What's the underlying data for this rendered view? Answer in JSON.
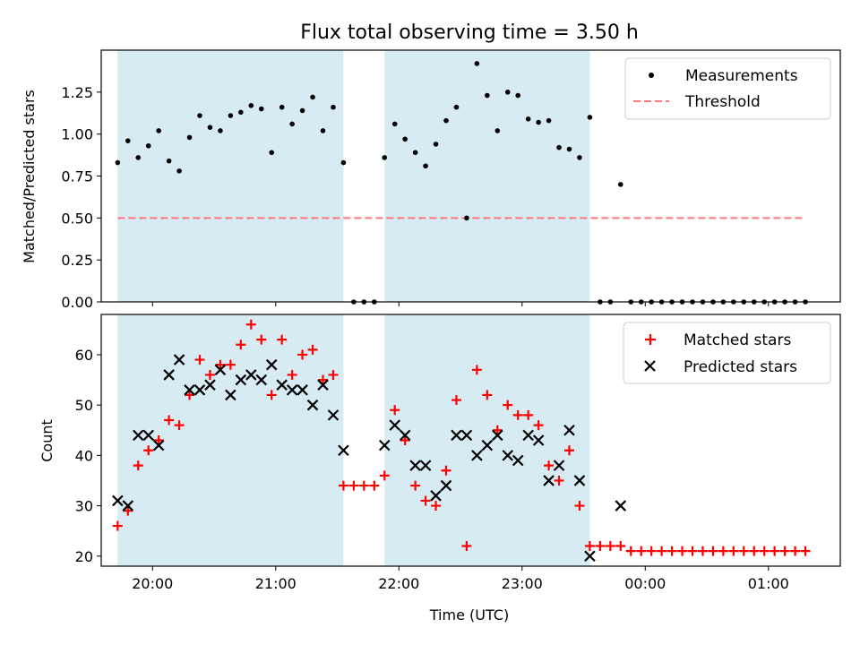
{
  "chart_data": [
    {
      "type": "scatter",
      "title": "Flux total observing time = 3.50 h",
      "xlabel": "",
      "ylabel": "Matched/Predicted stars",
      "xlim": [
        "19:35",
        "01:35"
      ],
      "ylim": [
        0,
        1.5
      ],
      "x_ticks": [
        "20:00",
        "21:00",
        "22:00",
        "23:00",
        "00:00",
        "01:00"
      ],
      "y_ticks": [
        "0.00",
        "0.25",
        "0.50",
        "0.75",
        "1.00",
        "1.25"
      ],
      "shaded_intervals": [
        [
          "19:43",
          "21:33"
        ],
        [
          "21:53",
          "23:33"
        ]
      ],
      "legend": {
        "placement": "upper right",
        "entries": [
          "Measurements",
          "Threshold"
        ]
      },
      "series": [
        {
          "name": "Measurements",
          "marker": "dot",
          "color": "#000000",
          "x": [
            "19:43",
            "19:48",
            "19:53",
            "19:58",
            "20:03",
            "20:08",
            "20:13",
            "20:18",
            "20:23",
            "20:28",
            "20:33",
            "20:38",
            "20:43",
            "20:48",
            "20:53",
            "20:58",
            "21:03",
            "21:08",
            "21:13",
            "21:18",
            "21:23",
            "21:28",
            "21:33",
            "21:38",
            "21:43",
            "21:48",
            "21:53",
            "21:58",
            "22:03",
            "22:08",
            "22:13",
            "22:18",
            "22:23",
            "22:28",
            "22:33",
            "22:38",
            "22:43",
            "22:48",
            "22:53",
            "22:58",
            "23:03",
            "23:08",
            "23:13",
            "23:18",
            "23:23",
            "23:28",
            "23:33",
            "23:38",
            "23:43",
            "23:48",
            "23:53",
            "23:58",
            "00:03",
            "00:08",
            "00:13",
            "00:18",
            "00:23",
            "00:28",
            "00:33",
            "00:38",
            "00:43",
            "00:48",
            "00:53",
            "00:58",
            "01:03",
            "01:08",
            "01:13",
            "01:18"
          ],
          "y": [
            0.83,
            0.96,
            0.86,
            0.93,
            1.02,
            0.84,
            0.78,
            0.98,
            1.11,
            1.04,
            1.02,
            1.11,
            1.13,
            1.17,
            1.15,
            0.89,
            1.16,
            1.06,
            1.14,
            1.22,
            1.02,
            1.16,
            0.83,
            0.0,
            0.0,
            0.0,
            0.86,
            1.06,
            0.97,
            0.89,
            0.81,
            0.94,
            1.08,
            1.16,
            0.5,
            1.42,
            1.23,
            1.02,
            1.25,
            1.23,
            1.09,
            1.07,
            1.08,
            0.92,
            0.91,
            0.86,
            1.1,
            0.0,
            0.0,
            0.7,
            0.0,
            0.0,
            0.0,
            0.0,
            0.0,
            0.0,
            0.0,
            0.0,
            0.0,
            0.0,
            0.0,
            0.0,
            0.0,
            0.0,
            0.0,
            0.0,
            0.0,
            0.0
          ]
        },
        {
          "name": "Threshold",
          "style": "dashed",
          "color": "#ff7777",
          "x": [
            "19:43",
            "01:18"
          ],
          "y": [
            0.5,
            0.5
          ]
        }
      ]
    },
    {
      "type": "scatter",
      "title": "",
      "xlabel": "Time (UTC)",
      "ylabel": "Count",
      "xlim": [
        "19:35",
        "01:35"
      ],
      "ylim": [
        18,
        68
      ],
      "x_ticks": [
        "20:00",
        "21:00",
        "22:00",
        "23:00",
        "00:00",
        "01:00"
      ],
      "y_ticks": [
        "20",
        "30",
        "40",
        "50",
        "60"
      ],
      "shaded_intervals": [
        [
          "19:43",
          "21:33"
        ],
        [
          "21:53",
          "23:33"
        ]
      ],
      "legend": {
        "placement": "upper right",
        "entries": [
          "Matched stars",
          "Predicted stars"
        ]
      },
      "series": [
        {
          "name": "Matched stars",
          "marker": "plus",
          "color": "#ff0000",
          "x": [
            "19:43",
            "19:48",
            "19:53",
            "19:58",
            "20:03",
            "20:08",
            "20:13",
            "20:18",
            "20:23",
            "20:28",
            "20:33",
            "20:38",
            "20:43",
            "20:48",
            "20:53",
            "20:58",
            "21:03",
            "21:08",
            "21:13",
            "21:18",
            "21:23",
            "21:28",
            "21:33",
            "21:38",
            "21:43",
            "21:48",
            "21:53",
            "21:58",
            "22:03",
            "22:08",
            "22:13",
            "22:18",
            "22:23",
            "22:28",
            "22:33",
            "22:38",
            "22:43",
            "22:48",
            "22:53",
            "22:58",
            "23:03",
            "23:08",
            "23:13",
            "23:18",
            "23:23",
            "23:28",
            "23:33",
            "23:38",
            "23:43",
            "23:48",
            "23:53",
            "23:58",
            "00:03",
            "00:08",
            "00:13",
            "00:18",
            "00:23",
            "00:28",
            "00:33",
            "00:38",
            "00:43",
            "00:48",
            "00:53",
            "00:58",
            "01:03",
            "01:08",
            "01:13",
            "01:18"
          ],
          "y": [
            26,
            29,
            38,
            41,
            43,
            47,
            46,
            52,
            59,
            56,
            58,
            58,
            62,
            66,
            63,
            52,
            63,
            56,
            60,
            61,
            55,
            56,
            34,
            34,
            34,
            34,
            36,
            49,
            43,
            34,
            31,
            30,
            37,
            51,
            22,
            57,
            52,
            45,
            50,
            48,
            48,
            46,
            38,
            35,
            41,
            30,
            22,
            22,
            22,
            22,
            21,
            21,
            21,
            21,
            21,
            21,
            21,
            21,
            21,
            21,
            21,
            21,
            21,
            21,
            21,
            21,
            21,
            21
          ]
        },
        {
          "name": "Predicted stars",
          "marker": "x",
          "color": "#000000",
          "x": [
            "19:43",
            "19:48",
            "19:53",
            "19:58",
            "20:03",
            "20:08",
            "20:13",
            "20:18",
            "20:23",
            "20:28",
            "20:33",
            "20:38",
            "20:43",
            "20:48",
            "20:53",
            "20:58",
            "21:03",
            "21:08",
            "21:13",
            "21:18",
            "21:23",
            "21:28",
            "21:33",
            "21:53",
            "21:58",
            "22:03",
            "22:08",
            "22:13",
            "22:18",
            "22:23",
            "22:28",
            "22:33",
            "22:38",
            "22:43",
            "22:48",
            "22:53",
            "22:58",
            "23:03",
            "23:08",
            "23:13",
            "23:18",
            "23:23",
            "23:28",
            "23:33",
            "23:48"
          ],
          "y": [
            31,
            30,
            44,
            44,
            42,
            56,
            59,
            53,
            53,
            54,
            57,
            52,
            55,
            56,
            55,
            58,
            54,
            53,
            53,
            50,
            54,
            48,
            41,
            42,
            46,
            44,
            38,
            38,
            32,
            34,
            44,
            44,
            40,
            42,
            44,
            40,
            39,
            44,
            43,
            35,
            38,
            45,
            35,
            20,
            30
          ]
        }
      ]
    }
  ]
}
